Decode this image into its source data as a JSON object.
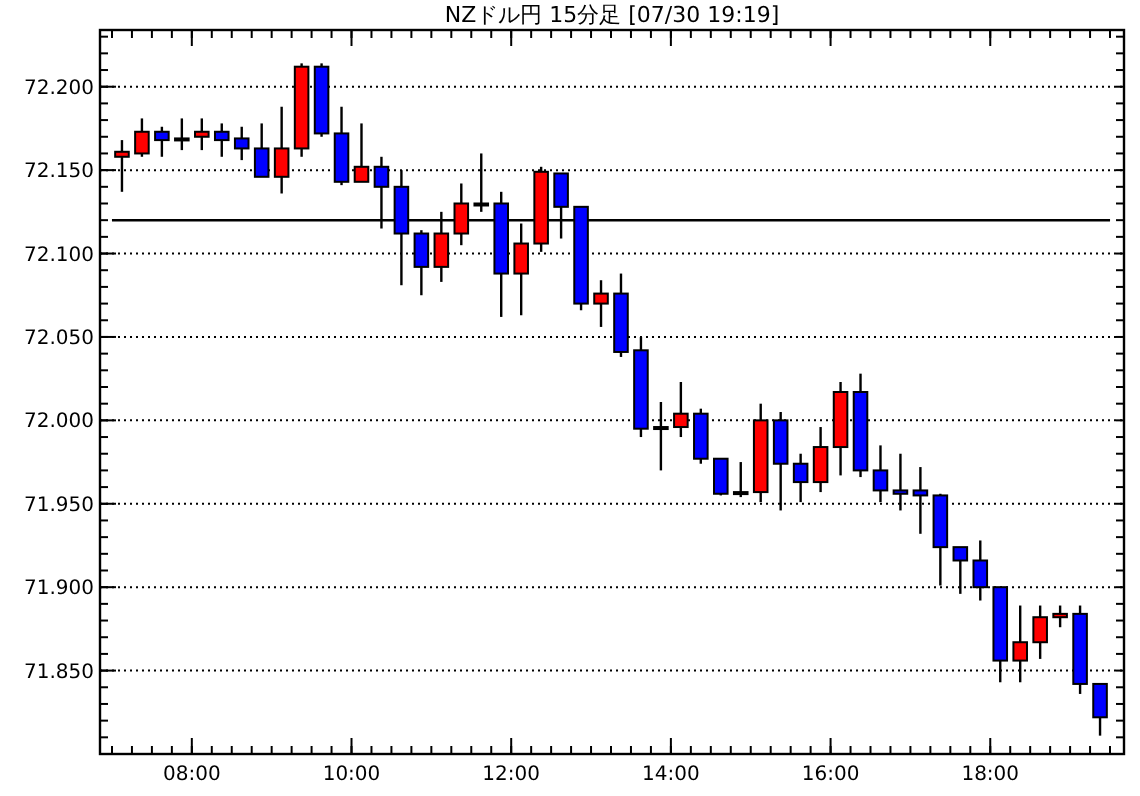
{
  "chart_data": {
    "type": "candlestick",
    "title": "NZドル円 15分足 [07/30 19:19]",
    "x": [
      7.125,
      7.375,
      7.625,
      7.875,
      8.125,
      8.375,
      8.625,
      8.875,
      9.125,
      9.375,
      9.625,
      9.875,
      10.125,
      10.375,
      10.625,
      10.875,
      11.125,
      11.375,
      11.625,
      11.875,
      12.125,
      12.375,
      12.625,
      12.875,
      13.125,
      13.375,
      13.625,
      13.875,
      14.125,
      14.375,
      14.625,
      14.875,
      15.125,
      15.375,
      15.625,
      15.875,
      16.125,
      16.375,
      16.625,
      16.875,
      17.125,
      17.375,
      17.625,
      17.875,
      18.125,
      18.375,
      18.625,
      18.875,
      19.125,
      19.375
    ],
    "ohlc": [
      [
        72.158,
        72.168,
        72.137,
        72.161
      ],
      [
        72.16,
        72.181,
        72.158,
        72.173
      ],
      [
        72.173,
        72.176,
        72.158,
        72.168
      ],
      [
        72.169,
        72.181,
        72.162,
        72.169
      ],
      [
        72.17,
        72.181,
        72.162,
        72.173
      ],
      [
        72.173,
        72.178,
        72.158,
        72.168
      ],
      [
        72.169,
        72.176,
        72.156,
        72.163
      ],
      [
        72.163,
        72.178,
        72.146,
        72.146
      ],
      [
        72.146,
        72.188,
        72.136,
        72.163
      ],
      [
        72.163,
        72.214,
        72.158,
        72.212
      ],
      [
        72.212,
        72.214,
        72.17,
        72.172
      ],
      [
        72.172,
        72.188,
        72.141,
        72.143
      ],
      [
        72.143,
        72.178,
        72.143,
        72.152
      ],
      [
        72.152,
        72.158,
        72.115,
        72.14
      ],
      [
        72.14,
        72.15,
        72.081,
        72.112
      ],
      [
        72.112,
        72.114,
        72.075,
        72.092
      ],
      [
        72.092,
        72.125,
        72.083,
        72.112
      ],
      [
        72.112,
        72.142,
        72.105,
        72.13
      ],
      [
        72.13,
        72.16,
        72.125,
        72.13
      ],
      [
        72.13,
        72.137,
        72.062,
        72.088
      ],
      [
        72.088,
        72.118,
        72.063,
        72.106
      ],
      [
        72.106,
        72.152,
        72.101,
        72.149
      ],
      [
        72.148,
        72.148,
        72.109,
        72.128
      ],
      [
        72.128,
        72.128,
        72.066,
        72.07
      ],
      [
        72.07,
        72.084,
        72.056,
        72.076
      ],
      [
        72.076,
        72.088,
        72.038,
        72.041
      ],
      [
        72.042,
        72.05,
        71.99,
        71.995
      ],
      [
        71.996,
        72.011,
        71.97,
        71.996
      ],
      [
        71.996,
        72.023,
        71.99,
        72.004
      ],
      [
        72.004,
        72.007,
        71.974,
        71.977
      ],
      [
        71.977,
        71.977,
        71.955,
        71.956
      ],
      [
        71.957,
        71.975,
        71.954,
        71.957
      ],
      [
        71.957,
        72.01,
        71.951,
        72.0
      ],
      [
        72.0,
        72.005,
        71.946,
        71.974
      ],
      [
        71.974,
        71.98,
        71.951,
        71.963
      ],
      [
        71.963,
        71.996,
        71.957,
        71.984
      ],
      [
        71.984,
        72.023,
        71.967,
        72.017
      ],
      [
        72.017,
        72.028,
        71.966,
        71.97
      ],
      [
        71.97,
        71.985,
        71.951,
        71.958
      ],
      [
        71.958,
        71.98,
        71.946,
        71.956
      ],
      [
        71.958,
        71.972,
        71.932,
        71.955
      ],
      [
        71.955,
        71.956,
        71.901,
        71.924
      ],
      [
        71.924,
        71.924,
        71.896,
        71.916
      ],
      [
        71.916,
        71.928,
        71.892,
        71.9
      ],
      [
        71.9,
        71.9,
        71.843,
        71.856
      ],
      [
        71.856,
        71.889,
        71.843,
        71.867
      ],
      [
        71.867,
        71.889,
        71.857,
        71.882
      ],
      [
        71.882,
        71.889,
        71.876,
        71.884
      ],
      [
        71.884,
        71.889,
        71.836,
        71.842
      ],
      [
        71.842,
        71.842,
        71.811,
        71.822
      ]
    ],
    "colors": [
      "#ff0000",
      "#ff0000",
      "#0000ff",
      "#000000",
      "#ff0000",
      "#0000ff",
      "#0000ff",
      "#0000ff",
      "#ff0000",
      "#ff0000",
      "#0000ff",
      "#0000ff",
      "#ff0000",
      "#0000ff",
      "#0000ff",
      "#0000ff",
      "#ff0000",
      "#ff0000",
      "#000000",
      "#0000ff",
      "#ff0000",
      "#ff0000",
      "#0000ff",
      "#0000ff",
      "#ff0000",
      "#0000ff",
      "#0000ff",
      "#000000",
      "#ff0000",
      "#0000ff",
      "#0000ff",
      "#000000",
      "#ff0000",
      "#0000ff",
      "#0000ff",
      "#ff0000",
      "#ff0000",
      "#0000ff",
      "#0000ff",
      "#0000ff",
      "#0000ff",
      "#0000ff",
      "#0000ff",
      "#0000ff",
      "#0000ff",
      "#ff0000",
      "#ff0000",
      "#ff0000",
      "#0000ff",
      "#0000ff"
    ],
    "xlim": [
      6.85,
      19.675
    ],
    "ylim": [
      71.8,
      72.234
    ],
    "xticks": [
      {
        "value": 8,
        "label": "08:00"
      },
      {
        "value": 10,
        "label": "10:00"
      },
      {
        "value": 12,
        "label": "12:00"
      },
      {
        "value": 14,
        "label": "14:00"
      },
      {
        "value": 16,
        "label": "16:00"
      },
      {
        "value": 18,
        "label": "18:00"
      }
    ],
    "yticks": [
      {
        "value": 71.85,
        "label": "71.850"
      },
      {
        "value": 71.9,
        "label": "71.900"
      },
      {
        "value": 71.95,
        "label": "71.950"
      },
      {
        "value": 72.0,
        "label": "72.000"
      },
      {
        "value": 72.05,
        "label": "72.050"
      },
      {
        "value": 72.1,
        "label": "72.100"
      },
      {
        "value": 72.15,
        "label": "72.150"
      },
      {
        "value": 72.2,
        "label": "72.200"
      }
    ],
    "grid": "y",
    "ref_lines": [
      {
        "axis": "y",
        "value": 72.12,
        "color": "#000000"
      }
    ]
  }
}
